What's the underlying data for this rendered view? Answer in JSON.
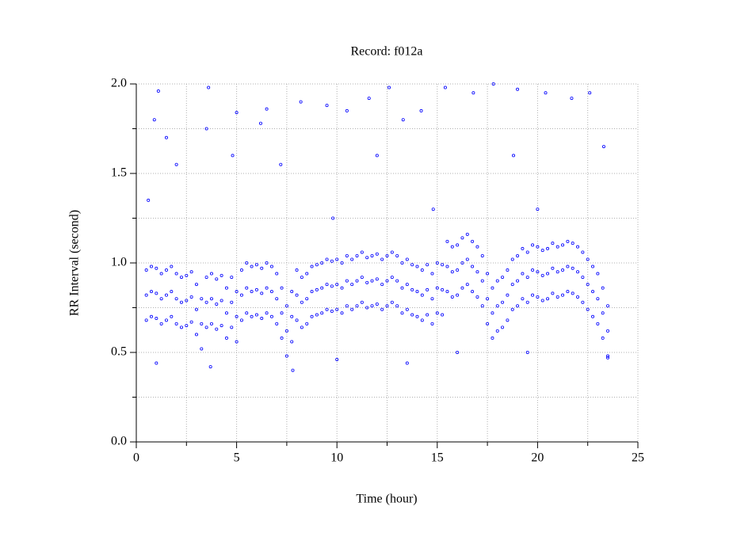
{
  "chart_data": {
    "type": "scatter",
    "title": "Record:  f012a",
    "x_label": "Time (hour)",
    "y_label": "RR Interval (second)",
    "color": "#0000ff",
    "grid": true,
    "xlim": [
      0,
      25
    ],
    "xticks": [
      0,
      5,
      10,
      15,
      20,
      25
    ],
    "xminor_ticks": [
      2.5,
      7.5,
      12.5,
      17.5,
      22.5
    ],
    "ylim": [
      0,
      2
    ],
    "yticks": [
      {
        "value": 0,
        "label": "0.0"
      },
      0.5,
      {
        "value": 1,
        "label": "1.0"
      },
      1.5,
      {
        "value": 2,
        "label": "2.0"
      }
    ],
    "yminor_ticks": [
      0.25,
      0.75,
      1.25,
      1.75
    ],
    "x": [
      0.5,
      0.75,
      1,
      1.25,
      1.5,
      1.75,
      2,
      2.25,
      2.5,
      2.75,
      3,
      3.25,
      3.5,
      3.75,
      4,
      4.25,
      4.5,
      4.75,
      5,
      5.25,
      5.5,
      5.75,
      6,
      6.25,
      6.5,
      6.75,
      7,
      7.25,
      7.5,
      7.75,
      8,
      8.25,
      8.5,
      8.75,
      9,
      9.25,
      9.5,
      9.75,
      10,
      10.25,
      10.5,
      10.75,
      11,
      11.25,
      11.5,
      11.75,
      12,
      12.25,
      12.5,
      12.75,
      13,
      13.25,
      13.5,
      13.75,
      14,
      14.25,
      14.5,
      14.75,
      15,
      15.25,
      15.5,
      15.75,
      16,
      16.25,
      16.5,
      16.75,
      17,
      17.25,
      17.5,
      17.75,
      18,
      18.25,
      18.5,
      18.75,
      19,
      19.25,
      19.5,
      19.75,
      20,
      20.25,
      20.5,
      20.75,
      21,
      21.25,
      21.5,
      21.75,
      22,
      22.25,
      22.5,
      22.75,
      23,
      23.25,
      23.5,
      0.5,
      0.75,
      1,
      1.25,
      1.5,
      1.75,
      2,
      2.25,
      2.5,
      2.75,
      3,
      3.25,
      3.5,
      3.75,
      4,
      4.25,
      4.5,
      4.75,
      5,
      5.25,
      5.5,
      5.75,
      6,
      6.25,
      6.5,
      6.75,
      7,
      7.25,
      7.5,
      7.75,
      8,
      8.25,
      8.5,
      8.75,
      9,
      9.25,
      9.5,
      9.75,
      10,
      10.25,
      10.5,
      10.75,
      11,
      11.25,
      11.5,
      11.75,
      12,
      12.25,
      12.5,
      12.75,
      13,
      13.25,
      13.5,
      13.75,
      14,
      14.25,
      14.5,
      14.75,
      15,
      15.25,
      15.5,
      15.75,
      16,
      16.25,
      16.5,
      16.75,
      17,
      17.25,
      17.5,
      17.75,
      18,
      18.25,
      18.5,
      18.75,
      19,
      19.25,
      19.5,
      19.75,
      20,
      20.25,
      20.5,
      20.75,
      21,
      21.25,
      21.5,
      21.75,
      22,
      22.25,
      22.5,
      22.75,
      23,
      23.25,
      23.5,
      0.5,
      0.75,
      1,
      1.25,
      1.5,
      1.75,
      2,
      2.25,
      2.5,
      2.75,
      3,
      3.25,
      3.5,
      3.75,
      4,
      4.25,
      4.5,
      4.75,
      5,
      5.25,
      5.5,
      5.75,
      6,
      6.25,
      6.5,
      6.75,
      7,
      7.25,
      7.5,
      7.75,
      8,
      8.25,
      8.5,
      8.75,
      9,
      9.25,
      9.5,
      9.75,
      10,
      10.25,
      10.5,
      10.75,
      11,
      11.25,
      11.5,
      11.75,
      12,
      12.25,
      12.5,
      12.75,
      13,
      13.25,
      13.5,
      13.75,
      14,
      14.25,
      14.5,
      14.75,
      15,
      15.25,
      15.5,
      15.75,
      16,
      16.25,
      16.5,
      16.75,
      17,
      17.25,
      17.5,
      17.75,
      18,
      18.25,
      18.5,
      18.75,
      19,
      19.25,
      19.5,
      19.75,
      20,
      20.25,
      20.5,
      20.75,
      21,
      21.25,
      21.5,
      21.75,
      22,
      22.25,
      22.5,
      22.75,
      23,
      23.25,
      23.5,
      1.1,
      0.9,
      1.5,
      3.6,
      3.5,
      5.0,
      6.2,
      6.5,
      8.2,
      9.5,
      10.5,
      11.6,
      12.6,
      13.3,
      14.2,
      15.4,
      16.8,
      17.8,
      19.0,
      20.4,
      21.7,
      22.6,
      23.3,
      2.0,
      4.8,
      7.2,
      12.0,
      18.8,
      1.0,
      3.7,
      7.8,
      10.0,
      13.5,
      16.0,
      19.5,
      23.5,
      0.6,
      9.8,
      14.8,
      20.0
    ],
    "values": [
      0.82,
      0.84,
      0.83,
      0.8,
      0.82,
      0.84,
      0.8,
      0.78,
      0.79,
      0.81,
      0.74,
      0.66,
      0.78,
      0.8,
      0.77,
      0.79,
      0.72,
      0.78,
      0.7,
      0.82,
      0.86,
      0.84,
      0.85,
      0.83,
      0.86,
      0.84,
      0.8,
      0.72,
      0.62,
      0.7,
      0.82,
      0.78,
      0.8,
      0.84,
      0.85,
      0.86,
      0.88,
      0.87,
      0.88,
      0.86,
      0.9,
      0.88,
      0.9,
      0.92,
      0.89,
      0.9,
      0.91,
      0.88,
      0.9,
      0.92,
      0.9,
      0.86,
      0.88,
      0.85,
      0.84,
      0.82,
      0.85,
      0.8,
      0.86,
      0.85,
      0.98,
      0.95,
      0.96,
      1.0,
      1.02,
      0.98,
      0.95,
      0.9,
      0.8,
      0.72,
      0.76,
      0.78,
      0.82,
      0.88,
      0.9,
      0.94,
      0.92,
      0.96,
      0.95,
      0.93,
      0.94,
      0.97,
      0.95,
      0.96,
      0.98,
      0.97,
      0.95,
      0.92,
      0.88,
      0.84,
      0.8,
      0.72,
      0.62,
      0.96,
      0.98,
      0.97,
      0.94,
      0.96,
      0.98,
      0.94,
      0.92,
      0.93,
      0.95,
      0.88,
      0.8,
      0.92,
      0.94,
      0.91,
      0.93,
      0.86,
      0.92,
      0.84,
      0.96,
      1.0,
      0.98,
      0.99,
      0.97,
      1.0,
      0.98,
      0.94,
      0.86,
      0.76,
      0.84,
      0.96,
      0.92,
      0.94,
      0.98,
      0.99,
      1.0,
      1.02,
      1.01,
      1.02,
      1.0,
      1.04,
      1.02,
      1.04,
      1.06,
      1.03,
      1.04,
      1.05,
      1.02,
      1.04,
      1.06,
      1.04,
      1.0,
      1.02,
      0.99,
      0.98,
      0.96,
      0.99,
      0.94,
      1.0,
      0.99,
      1.12,
      1.09,
      1.1,
      1.14,
      1.16,
      1.12,
      1.09,
      1.04,
      0.94,
      0.86,
      0.9,
      0.92,
      0.96,
      1.02,
      1.04,
      1.08,
      1.06,
      1.1,
      1.09,
      1.07,
      1.08,
      1.11,
      1.09,
      1.1,
      1.12,
      1.11,
      1.09,
      1.06,
      1.02,
      0.98,
      0.94,
      0.86,
      0.76,
      0.68,
      0.7,
      0.69,
      0.66,
      0.68,
      0.7,
      0.66,
      0.64,
      0.65,
      0.67,
      0.6,
      0.52,
      0.64,
      0.66,
      0.63,
      0.65,
      0.58,
      0.64,
      0.56,
      0.68,
      0.72,
      0.7,
      0.71,
      0.69,
      0.72,
      0.7,
      0.66,
      0.58,
      0.48,
      0.56,
      0.68,
      0.64,
      0.66,
      0.7,
      0.71,
      0.72,
      0.74,
      0.73,
      0.74,
      0.72,
      0.76,
      0.74,
      0.76,
      0.78,
      0.75,
      0.76,
      0.77,
      0.74,
      0.76,
      0.78,
      0.76,
      0.72,
      0.74,
      0.71,
      0.7,
      0.68,
      0.71,
      0.66,
      0.72,
      0.71,
      0.84,
      0.81,
      0.82,
      0.86,
      0.88,
      0.84,
      0.81,
      0.76,
      0.66,
      0.58,
      0.62,
      0.64,
      0.68,
      0.74,
      0.76,
      0.8,
      0.78,
      0.82,
      0.81,
      0.79,
      0.8,
      0.83,
      0.81,
      0.82,
      0.84,
      0.83,
      0.81,
      0.78,
      0.74,
      0.7,
      0.66,
      0.58,
      0.48,
      1.96,
      1.8,
      1.7,
      1.98,
      1.75,
      1.84,
      1.78,
      1.86,
      1.9,
      1.88,
      1.85,
      1.92,
      1.98,
      1.8,
      1.85,
      1.98,
      1.95,
      2.0,
      1.97,
      1.95,
      1.92,
      1.95,
      1.65,
      1.55,
      1.6,
      1.55,
      1.6,
      1.6,
      0.44,
      0.42,
      0.4,
      0.46,
      0.44,
      0.5,
      0.5,
      0.47,
      1.35,
      1.25,
      1.3,
      1.3
    ]
  }
}
